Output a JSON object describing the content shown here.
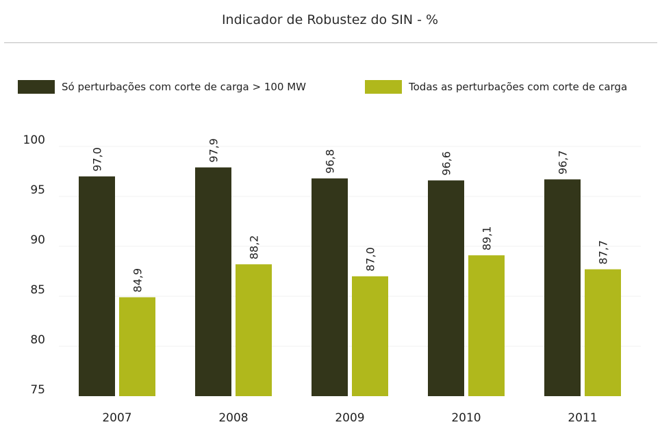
{
  "chart_data": {
    "type": "bar",
    "title": "Indicador de Robustez do SIN - %",
    "categories": [
      "2007",
      "2008",
      "2009",
      "2010",
      "2011"
    ],
    "series": [
      {
        "name": "Só perturbações com corte de carga > 100 MW",
        "color": "#33361a",
        "values": [
          97.0,
          97.9,
          96.8,
          96.6,
          96.7
        ],
        "labels": [
          "97,0",
          "97,9",
          "96,8",
          "96,6",
          "96,7"
        ]
      },
      {
        "name": "Todas as perturbações com corte de carga",
        "color": "#b0b81c",
        "values": [
          84.9,
          88.2,
          87.0,
          89.1,
          87.7
        ],
        "labels": [
          "84,9",
          "88,2",
          "87,0",
          "89,1",
          "87,7"
        ]
      }
    ],
    "yticks": [
      "75",
      "80",
      "85",
      "90",
      "95",
      "100"
    ],
    "ylim": [
      75,
      100
    ],
    "grid": true,
    "legend": "top"
  }
}
